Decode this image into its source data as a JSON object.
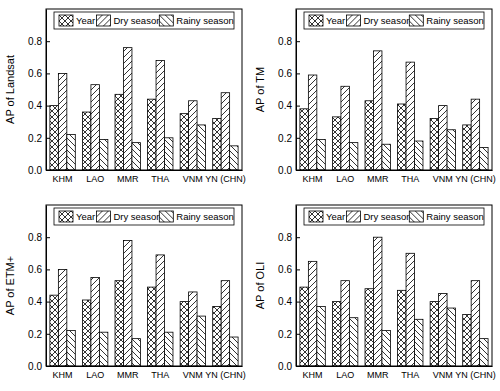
{
  "chart_data": [
    {
      "type": "bar",
      "ylabel": "AP of Landsat",
      "categories": [
        "KHM",
        "LAO",
        "MMR",
        "THA",
        "VNM",
        "YN (CHN)"
      ],
      "series": [
        {
          "name": "Year",
          "color": "#000000",
          "values": [
            0.4,
            0.36,
            0.47,
            0.44,
            0.35,
            0.32
          ]
        },
        {
          "name": "Dry season",
          "color": "#000000",
          "values": [
            0.6,
            0.53,
            0.76,
            0.68,
            0.43,
            0.48
          ]
        },
        {
          "name": "Rainy season",
          "color": "#000000",
          "values": [
            0.22,
            0.19,
            0.17,
            0.2,
            0.28,
            0.15
          ]
        }
      ],
      "ylim": [
        0,
        1.0
      ],
      "yticks": [
        {
          "value": 0,
          "label": "0.0"
        },
        {
          "value": 0.2,
          "label": "0.2"
        },
        {
          "value": 0.4,
          "label": "0.4"
        },
        {
          "value": 0.6,
          "label": "0.6"
        },
        {
          "value": 0.8,
          "label": "0.8"
        }
      ],
      "legend": "top"
    },
    {
      "type": "bar",
      "ylabel": "AP of TM",
      "categories": [
        "KHM",
        "LAO",
        "MMR",
        "THA",
        "VNM",
        "YN (CHN)"
      ],
      "series": [
        {
          "name": "Year",
          "color": "#000000",
          "values": [
            0.38,
            0.33,
            0.43,
            0.41,
            0.32,
            0.28
          ]
        },
        {
          "name": "Dry season",
          "color": "#000000",
          "values": [
            0.59,
            0.52,
            0.74,
            0.67,
            0.4,
            0.44
          ]
        },
        {
          "name": "Rainy season",
          "color": "#000000",
          "values": [
            0.19,
            0.17,
            0.16,
            0.18,
            0.25,
            0.14
          ]
        }
      ],
      "ylim": [
        0,
        1.0
      ],
      "yticks": [
        {
          "value": 0,
          "label": "0.0"
        },
        {
          "value": 0.2,
          "label": "0.2"
        },
        {
          "value": 0.4,
          "label": "0.4"
        },
        {
          "value": 0.6,
          "label": "0.6"
        },
        {
          "value": 0.8,
          "label": "0.8"
        }
      ],
      "legend": "top"
    },
    {
      "type": "bar",
      "ylabel": "AP of ETM+",
      "categories": [
        "KHM",
        "LAO",
        "MMR",
        "THA",
        "VNM",
        "YN (CHN)"
      ],
      "series": [
        {
          "name": "Year",
          "color": "#000000",
          "values": [
            0.44,
            0.41,
            0.53,
            0.49,
            0.4,
            0.37
          ]
        },
        {
          "name": "Dry season",
          "color": "#000000",
          "values": [
            0.6,
            0.55,
            0.78,
            0.69,
            0.46,
            0.53
          ]
        },
        {
          "name": "Rainy season",
          "color": "#000000",
          "values": [
            0.22,
            0.21,
            0.17,
            0.21,
            0.31,
            0.18
          ]
        }
      ],
      "ylim": [
        0,
        1.0
      ],
      "yticks": [
        {
          "value": 0,
          "label": "0.0"
        },
        {
          "value": 0.2,
          "label": "0.2"
        },
        {
          "value": 0.4,
          "label": "0.4"
        },
        {
          "value": 0.6,
          "label": "0.6"
        },
        {
          "value": 0.8,
          "label": "0.8"
        }
      ],
      "legend": "top"
    },
    {
      "type": "bar",
      "ylabel": "AP of OLI",
      "categories": [
        "KHM",
        "LAO",
        "MMR",
        "THA",
        "VNM",
        "YN (CHN)"
      ],
      "series": [
        {
          "name": "Year",
          "color": "#000000",
          "values": [
            0.49,
            0.4,
            0.48,
            0.47,
            0.4,
            0.32
          ]
        },
        {
          "name": "Dry season",
          "color": "#000000",
          "values": [
            0.65,
            0.53,
            0.8,
            0.7,
            0.45,
            0.53
          ]
        },
        {
          "name": "Rainy season",
          "color": "#000000",
          "values": [
            0.37,
            0.3,
            0.22,
            0.29,
            0.36,
            0.17
          ]
        }
      ],
      "ylim": [
        0,
        1.0
      ],
      "yticks": [
        {
          "value": 0,
          "label": "0.0"
        },
        {
          "value": 0.2,
          "label": "0.2"
        },
        {
          "value": 0.4,
          "label": "0.4"
        },
        {
          "value": 0.6,
          "label": "0.6"
        },
        {
          "value": 0.8,
          "label": "0.8"
        }
      ],
      "legend": "top"
    }
  ]
}
